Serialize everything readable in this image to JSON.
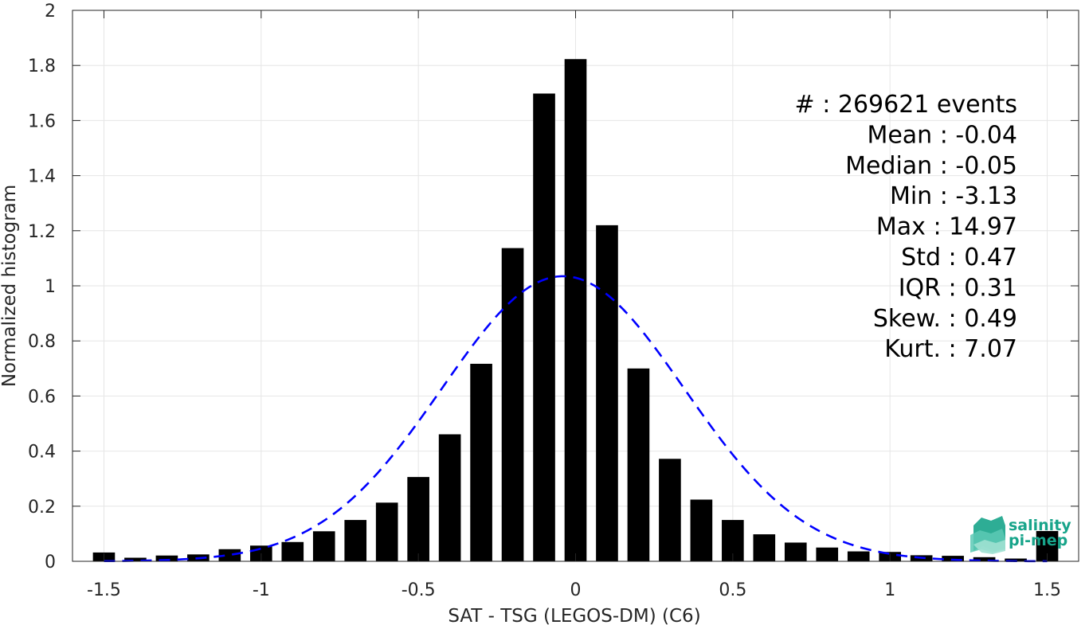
{
  "chart_data": {
    "type": "bar",
    "xlabel": "SAT - TSG (LEGOS-DM) (C6)",
    "ylabel": "Normalized histogram",
    "xlim": [
      -1.6,
      1.6
    ],
    "ylim": [
      0,
      2
    ],
    "x_ticks": [
      -1.5,
      -1,
      -0.5,
      0,
      0.5,
      1,
      1.5
    ],
    "x_tick_labels": [
      "-1.5",
      "-1",
      "-0.5",
      "0",
      "0.5",
      "1",
      "1.5"
    ],
    "y_ticks": [
      0,
      0.2,
      0.4,
      0.6,
      0.8,
      1,
      1.2,
      1.4,
      1.6,
      1.8,
      2
    ],
    "y_tick_labels": [
      "0",
      "0.2",
      "0.4",
      "0.6",
      "0.8",
      "1",
      "1.2",
      "1.4",
      "1.6",
      "1.8",
      "2"
    ],
    "grid": true,
    "bar_color": "#000000",
    "bar_width": 0.07,
    "x": [
      -1.5,
      -1.4,
      -1.3,
      -1.2,
      -1.1,
      -1.0,
      -0.9,
      -0.8,
      -0.7,
      -0.6,
      -0.5,
      -0.4,
      -0.3,
      -0.2,
      -0.1,
      0.0,
      0.1,
      0.2,
      0.3,
      0.4,
      0.5,
      0.6,
      0.7,
      0.8,
      0.9,
      1.0,
      1.1,
      1.2,
      1.3,
      1.4,
      1.5
    ],
    "values": [
      0.032,
      0.013,
      0.021,
      0.025,
      0.044,
      0.057,
      0.07,
      0.109,
      0.15,
      0.213,
      0.306,
      0.461,
      0.717,
      1.137,
      1.698,
      1.823,
      1.22,
      0.7,
      0.372,
      0.224,
      0.15,
      0.098,
      0.068,
      0.05,
      0.036,
      0.034,
      0.022,
      0.02,
      0.015,
      0.01,
      0.11
    ],
    "fit_curve": {
      "style": "dashed",
      "color": "#0000ff",
      "type": "gaussian",
      "mean": -0.04,
      "std": 0.385,
      "peak": 1.035,
      "x_range": [
        -1.5,
        1.5
      ]
    },
    "annotations": [
      "#  : 269621 events",
      "Mean : -0.04",
      "Median : -0.05",
      "Min : -3.13",
      "Max : 14.97",
      "Std : 0.47",
      "IQR : 0.31",
      "Skew. : 0.49",
      "Kurt. : 7.07"
    ]
  },
  "logo": {
    "line1": "salinity",
    "line2": "pi-mep",
    "color": "#17a48a"
  },
  "colors": {
    "grid": "#e6e6e6",
    "axis": "#262626",
    "background": "#ffffff"
  }
}
